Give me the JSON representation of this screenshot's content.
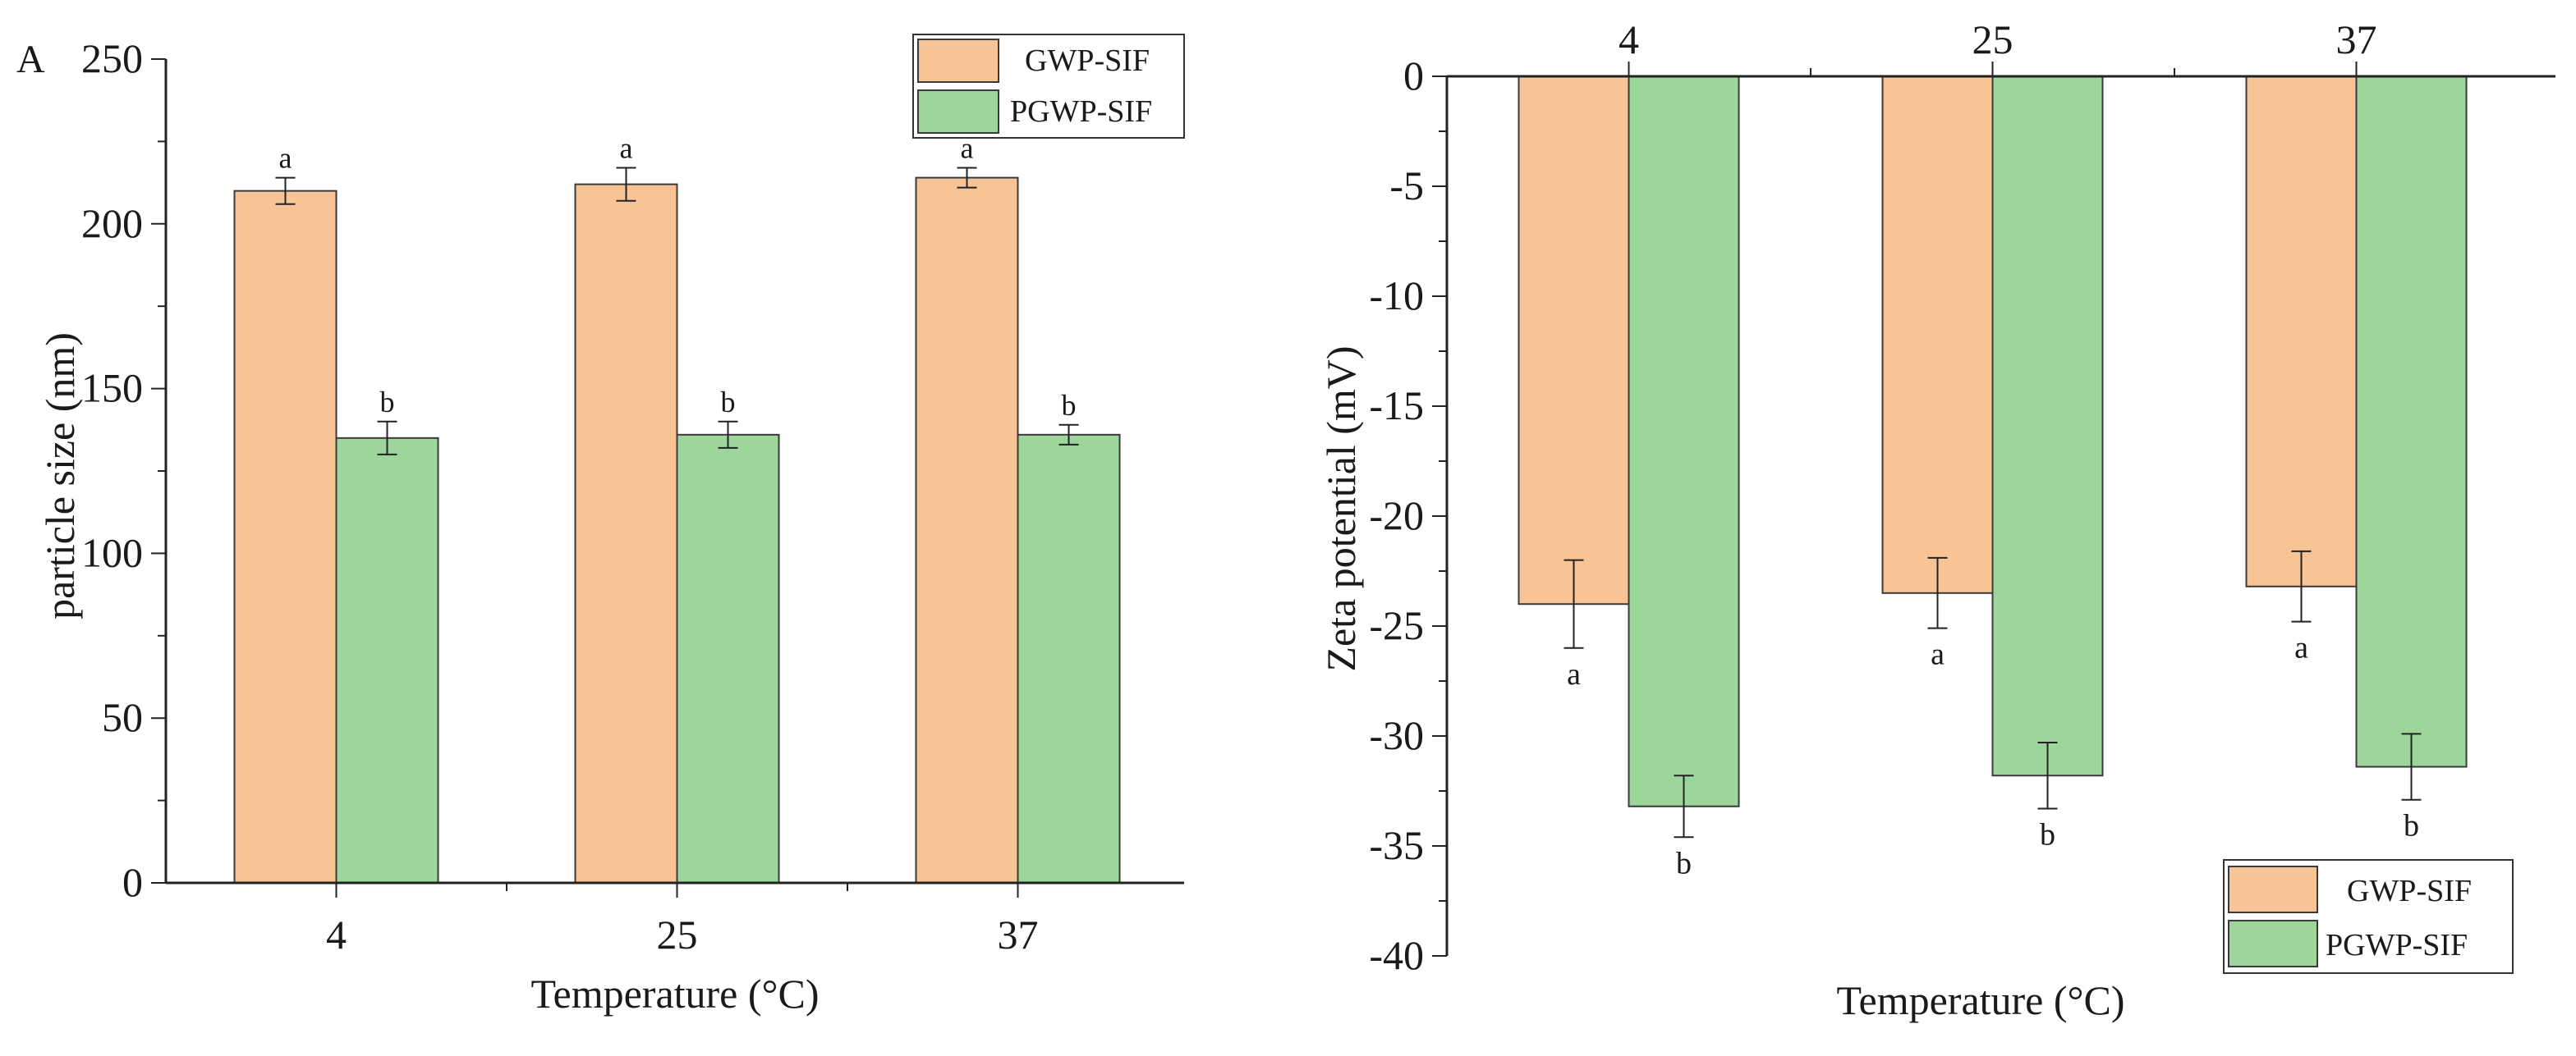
{
  "colors": {
    "gwp": "#f9c495",
    "pgwp": "#9dd69b",
    "axis": "#222222",
    "bar_edge": "#3a3a3a"
  },
  "chart_data": [
    {
      "type": "bar",
      "panel_label": "A",
      "title": "",
      "xlabel": "Temperature (°C)",
      "ylabel": "particle size (nm)",
      "categories": [
        "4",
        "25",
        "37"
      ],
      "ylim": [
        0,
        250
      ],
      "yticks": [
        "0",
        "50",
        "100",
        "150",
        "200",
        "250"
      ],
      "legend_position": "top-right",
      "series": [
        {
          "name": "GWP-SIF",
          "values": [
            210,
            212,
            214
          ],
          "errors": [
            4,
            5,
            3
          ],
          "labels": [
            "a",
            "a",
            "a"
          ]
        },
        {
          "name": "PGWP-SIF",
          "values": [
            135,
            136,
            136
          ],
          "errors": [
            5,
            4,
            3
          ],
          "labels": [
            "b",
            "b",
            "b"
          ]
        }
      ]
    },
    {
      "type": "bar",
      "panel_label": "",
      "title": "",
      "xlabel": "Temperature (°C)",
      "ylabel": "Zeta potential (mV)",
      "categories": [
        "4",
        "25",
        "37"
      ],
      "ylim": [
        -40,
        0
      ],
      "yticks": [
        "0",
        "-5",
        "-10",
        "-15",
        "-20",
        "-25",
        "-30",
        "-35",
        "-40"
      ],
      "legend_position": "bottom-right",
      "series": [
        {
          "name": "GWP-SIF",
          "values": [
            -24.0,
            -23.5,
            -23.2
          ],
          "errors": [
            2.0,
            1.6,
            1.6
          ],
          "labels": [
            "a",
            "a",
            "a"
          ]
        },
        {
          "name": "PGWP-SIF",
          "values": [
            -33.2,
            -31.8,
            -31.4
          ],
          "errors": [
            1.4,
            1.5,
            1.5
          ],
          "labels": [
            "b",
            "b",
            "b"
          ]
        }
      ]
    }
  ]
}
